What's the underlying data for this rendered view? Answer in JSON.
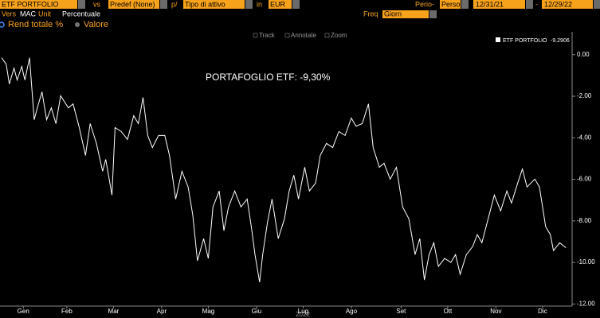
{
  "toolbar": {
    "security": "ETF PORTFOLIO",
    "vs": "vs",
    "benchmark": "Predef (None)",
    "per": "p/",
    "asset_type": "Tipo di attivo",
    "in": "in",
    "currency": "EUR",
    "period_label": "Perio-",
    "period": "Perso",
    "start_date": "12/31/21",
    "dash": "-",
    "end_date": "12/29/22",
    "vers_label": "Vers",
    "vers": "MAC",
    "unit_label": "Unit",
    "unit": "Percentuale",
    "freq_label": "Freq",
    "freq": "Giorn",
    "option_1": "Rend totale %",
    "option_2": "Valore",
    "tools": [
      "Track",
      "Annotate",
      "Zoom"
    ]
  },
  "chart_data": {
    "type": "line",
    "annotation": "PORTAFOGLIO ETF: -9,30%",
    "year_label": "2022",
    "last_value": -9.2906,
    "x": [
      0,
      3,
      5,
      8,
      10,
      13,
      15,
      18,
      21,
      23,
      26,
      29,
      32,
      35,
      38,
      43,
      46,
      50,
      54,
      57,
      61,
      65,
      67,
      71,
      73,
      77,
      81,
      85,
      88,
      91,
      94,
      97,
      101,
      105,
      108,
      112,
      116,
      120,
      123,
      126,
      130,
      133,
      136,
      140,
      143,
      146,
      150,
      154,
      158,
      161,
      163,
      166,
      168,
      171,
      174,
      178,
      182,
      185,
      188,
      191,
      195,
      198,
      202,
      205,
      209,
      213,
      217,
      221,
      225,
      228,
      232,
      236,
      239,
      243,
      246,
      250,
      254,
      258,
      262,
      266,
      269,
      272,
      275,
      278,
      281,
      285,
      289,
      292,
      295,
      299,
      303,
      306,
      309,
      313,
      317,
      321,
      325,
      328,
      332,
      335,
      338,
      343,
      346,
      350,
      353,
      355,
      359,
      363
    ],
    "series": [
      {
        "name": "ETF PORTFOLIO",
        "color": "#ffffff",
        "values": [
          -0.15,
          -0.46,
          -1.41,
          -0.65,
          -1.22,
          -0.57,
          -1.22,
          -0.15,
          -3.13,
          -2.56,
          -1.79,
          -3.13,
          -2.56,
          -3.32,
          -1.98,
          -2.56,
          -2.37,
          -3.51,
          -4.85,
          -3.32,
          -4.27,
          -5.61,
          -5.04,
          -6.76,
          -3.51,
          -3.7,
          -4.08,
          -2.94,
          -3.32,
          -2.06,
          -3.89,
          -4.47,
          -3.89,
          -3.89,
          -4.85,
          -6.95,
          -5.61,
          -6.37,
          -7.71,
          -9.92,
          -8.85,
          -9.81,
          -7.33,
          -6.56,
          -8.47,
          -7.33,
          -6.56,
          -7.33,
          -6.95,
          -8.47,
          -9.62,
          -10.95,
          -9.62,
          -8.09,
          -6.95,
          -8.85,
          -7.9,
          -6.56,
          -5.8,
          -6.95,
          -5.42,
          -6.56,
          -6.18,
          -4.85,
          -4.27,
          -4.47,
          -3.7,
          -3.89,
          -3.05,
          -3.44,
          -3.32,
          -2.37,
          -4.47,
          -5.42,
          -5.23,
          -5.99,
          -5.42,
          -7.33,
          -7.9,
          -9.62,
          -8.85,
          -10.84,
          -9.62,
          -9.05,
          -10.19,
          -9.81,
          -10,
          -9.62,
          -10.57,
          -9.62,
          -9.24,
          -8.66,
          -9.05,
          -7.9,
          -6.76,
          -7.52,
          -6.56,
          -7.14,
          -6.18,
          -5.5,
          -6.37,
          -5.99,
          -6.37,
          -8.28,
          -8.66,
          -9.43,
          -9.05,
          -9.29
        ]
      }
    ],
    "xlim": [
      -1,
      367
    ],
    "xticks": [
      {
        "value": 14,
        "label": "Gen"
      },
      {
        "value": 42,
        "label": "Feb"
      },
      {
        "value": 72,
        "label": "Mar"
      },
      {
        "value": 103,
        "label": "Apr"
      },
      {
        "value": 133,
        "label": "Mag"
      },
      {
        "value": 164,
        "label": "Giu"
      },
      {
        "value": 194,
        "label": "Lug"
      },
      {
        "value": 225,
        "label": "Ago"
      },
      {
        "value": 257,
        "label": "Set"
      },
      {
        "value": 287,
        "label": "Ott"
      },
      {
        "value": 318,
        "label": "Nov"
      },
      {
        "value": 348,
        "label": "Dic"
      }
    ],
    "ylim": [
      -12.1,
      1.1
    ],
    "yticks": [
      {
        "value": 0,
        "label": "0.00"
      },
      {
        "value": -2,
        "label": "-2.00"
      },
      {
        "value": -4,
        "label": "-4.00"
      },
      {
        "value": -6,
        "label": "-6.00"
      },
      {
        "value": -8,
        "label": "-8.00"
      },
      {
        "value": -10,
        "label": "-10.00"
      },
      {
        "value": -12,
        "label": "-12.00"
      }
    ],
    "grid": false
  }
}
